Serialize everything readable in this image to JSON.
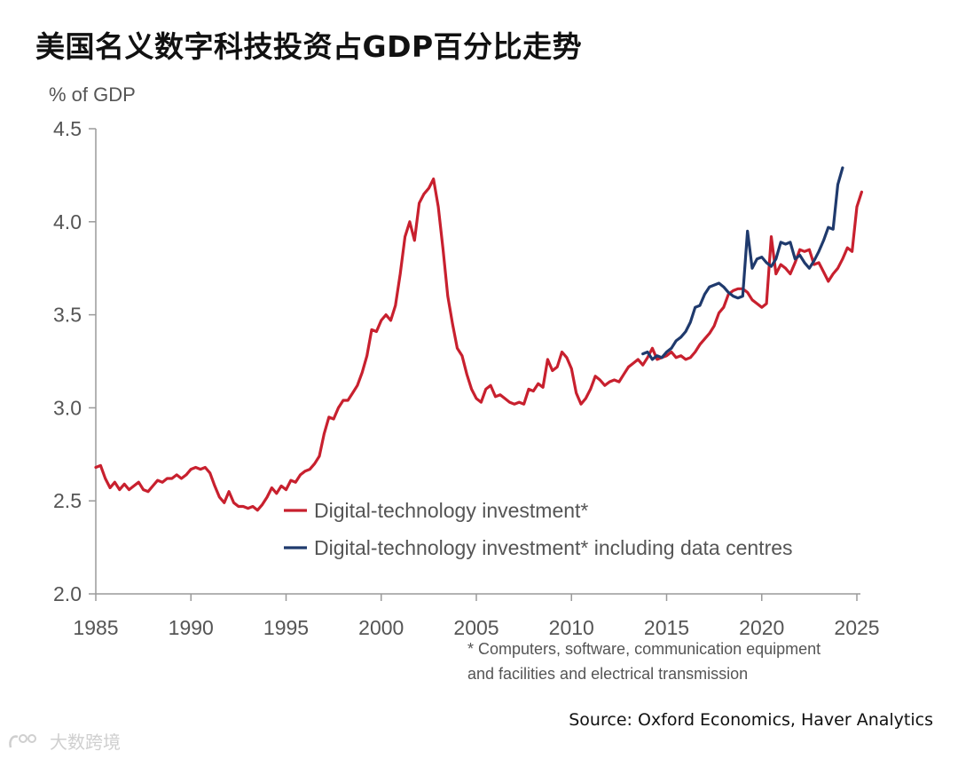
{
  "title": "美国名义数字科技投资占GDP百分比走势",
  "source": "Source: Oxford Economics, Haver Analytics",
  "watermark": "大数跨境",
  "colors": {
    "red": "#c8202e",
    "navy": "#1f3a6d",
    "axis": "#9a9a9a",
    "text": "#555555"
  },
  "chart_data": {
    "type": "line",
    "ylabel": "% of GDP",
    "ylim": [
      2.0,
      4.5
    ],
    "xlim": [
      1985,
      2025.5
    ],
    "yticks": [
      "2.0",
      "2.5",
      "3.0",
      "3.5",
      "4.0",
      "4.5"
    ],
    "xticks": [
      "1985",
      "1990",
      "1995",
      "2000",
      "2005",
      "2010",
      "2015",
      "2020",
      "2025"
    ],
    "footnote": [
      "* Computers, software, communication equipment",
      "and facilities  and electrical transmission"
    ],
    "series": [
      {
        "name": "Digital-technology investment*",
        "color": "#c8202e",
        "points": [
          [
            1985.0,
            2.68
          ],
          [
            1985.25,
            2.69
          ],
          [
            1985.5,
            2.62
          ],
          [
            1985.75,
            2.57
          ],
          [
            1986.0,
            2.6
          ],
          [
            1986.25,
            2.56
          ],
          [
            1986.5,
            2.59
          ],
          [
            1986.75,
            2.56
          ],
          [
            1987.0,
            2.58
          ],
          [
            1987.25,
            2.6
          ],
          [
            1987.5,
            2.56
          ],
          [
            1987.75,
            2.55
          ],
          [
            1988.0,
            2.58
          ],
          [
            1988.25,
            2.61
          ],
          [
            1988.5,
            2.6
          ],
          [
            1988.75,
            2.62
          ],
          [
            1989.0,
            2.62
          ],
          [
            1989.25,
            2.64
          ],
          [
            1989.5,
            2.62
          ],
          [
            1989.75,
            2.64
          ],
          [
            1990.0,
            2.67
          ],
          [
            1990.25,
            2.68
          ],
          [
            1990.5,
            2.67
          ],
          [
            1990.75,
            2.68
          ],
          [
            1991.0,
            2.65
          ],
          [
            1991.25,
            2.58
          ],
          [
            1991.5,
            2.52
          ],
          [
            1991.75,
            2.49
          ],
          [
            1992.0,
            2.55
          ],
          [
            1992.25,
            2.49
          ],
          [
            1992.5,
            2.47
          ],
          [
            1992.75,
            2.47
          ],
          [
            1993.0,
            2.46
          ],
          [
            1993.25,
            2.47
          ],
          [
            1993.5,
            2.45
          ],
          [
            1993.75,
            2.48
          ],
          [
            1994.0,
            2.52
          ],
          [
            1994.25,
            2.57
          ],
          [
            1994.5,
            2.54
          ],
          [
            1994.75,
            2.58
          ],
          [
            1995.0,
            2.56
          ],
          [
            1995.25,
            2.61
          ],
          [
            1995.5,
            2.6
          ],
          [
            1995.75,
            2.64
          ],
          [
            1996.0,
            2.66
          ],
          [
            1996.25,
            2.67
          ],
          [
            1996.5,
            2.7
          ],
          [
            1996.75,
            2.74
          ],
          [
            1997.0,
            2.86
          ],
          [
            1997.25,
            2.95
          ],
          [
            1997.5,
            2.94
          ],
          [
            1997.75,
            3.0
          ],
          [
            1998.0,
            3.04
          ],
          [
            1998.25,
            3.04
          ],
          [
            1998.5,
            3.08
          ],
          [
            1998.75,
            3.12
          ],
          [
            1999.0,
            3.19
          ],
          [
            1999.25,
            3.28
          ],
          [
            1999.5,
            3.42
          ],
          [
            1999.75,
            3.41
          ],
          [
            2000.0,
            3.47
          ],
          [
            2000.25,
            3.5
          ],
          [
            2000.5,
            3.47
          ],
          [
            2000.75,
            3.55
          ],
          [
            2001.0,
            3.72
          ],
          [
            2001.25,
            3.92
          ],
          [
            2001.5,
            4.0
          ],
          [
            2001.75,
            3.9
          ],
          [
            2002.0,
            4.1
          ],
          [
            2002.25,
            4.15
          ],
          [
            2002.5,
            4.18
          ],
          [
            2002.75,
            4.23
          ],
          [
            2003.0,
            4.08
          ],
          [
            2003.25,
            3.85
          ],
          [
            2003.5,
            3.6
          ],
          [
            2003.75,
            3.45
          ],
          [
            2004.0,
            3.32
          ],
          [
            2004.25,
            3.28
          ],
          [
            2004.5,
            3.18
          ],
          [
            2004.75,
            3.1
          ],
          [
            2005.0,
            3.05
          ],
          [
            2005.25,
            3.03
          ],
          [
            2005.5,
            3.1
          ],
          [
            2005.75,
            3.12
          ],
          [
            2006.0,
            3.06
          ],
          [
            2006.25,
            3.07
          ],
          [
            2006.5,
            3.05
          ],
          [
            2006.75,
            3.03
          ],
          [
            2007.0,
            3.02
          ],
          [
            2007.25,
            3.03
          ],
          [
            2007.5,
            3.02
          ],
          [
            2007.75,
            3.1
          ],
          [
            2008.0,
            3.09
          ],
          [
            2008.25,
            3.13
          ],
          [
            2008.5,
            3.11
          ],
          [
            2008.75,
            3.26
          ],
          [
            2009.0,
            3.2
          ],
          [
            2009.25,
            3.22
          ],
          [
            2009.5,
            3.3
          ],
          [
            2009.75,
            3.27
          ],
          [
            2010.0,
            3.21
          ],
          [
            2010.25,
            3.08
          ],
          [
            2010.5,
            3.02
          ],
          [
            2010.75,
            3.05
          ],
          [
            2011.0,
            3.1
          ],
          [
            2011.25,
            3.17
          ],
          [
            2011.5,
            3.15
          ],
          [
            2011.75,
            3.12
          ],
          [
            2012.0,
            3.14
          ],
          [
            2012.25,
            3.15
          ],
          [
            2012.5,
            3.14
          ],
          [
            2012.75,
            3.18
          ],
          [
            2013.0,
            3.22
          ],
          [
            2013.25,
            3.24
          ],
          [
            2013.5,
            3.26
          ],
          [
            2013.75,
            3.23
          ],
          [
            2014.0,
            3.27
          ],
          [
            2014.25,
            3.32
          ],
          [
            2014.5,
            3.26
          ],
          [
            2014.75,
            3.27
          ],
          [
            2015.0,
            3.28
          ],
          [
            2015.25,
            3.3
          ],
          [
            2015.5,
            3.27
          ],
          [
            2015.75,
            3.28
          ],
          [
            2016.0,
            3.26
          ],
          [
            2016.25,
            3.27
          ],
          [
            2016.5,
            3.3
          ],
          [
            2016.75,
            3.34
          ],
          [
            2017.0,
            3.37
          ],
          [
            2017.25,
            3.4
          ],
          [
            2017.5,
            3.44
          ],
          [
            2017.75,
            3.51
          ],
          [
            2018.0,
            3.54
          ],
          [
            2018.25,
            3.61
          ],
          [
            2018.5,
            3.63
          ],
          [
            2018.75,
            3.64
          ],
          [
            2019.0,
            3.64
          ],
          [
            2019.25,
            3.62
          ],
          [
            2019.5,
            3.58
          ],
          [
            2019.75,
            3.56
          ],
          [
            2020.0,
            3.54
          ],
          [
            2020.25,
            3.56
          ],
          [
            2020.5,
            3.92
          ],
          [
            2020.75,
            3.72
          ],
          [
            2021.0,
            3.77
          ],
          [
            2021.25,
            3.75
          ],
          [
            2021.5,
            3.72
          ],
          [
            2021.75,
            3.78
          ],
          [
            2022.0,
            3.85
          ],
          [
            2022.25,
            3.84
          ],
          [
            2022.5,
            3.85
          ],
          [
            2022.75,
            3.77
          ],
          [
            2023.0,
            3.78
          ],
          [
            2023.25,
            3.73
          ],
          [
            2023.5,
            3.68
          ],
          [
            2023.75,
            3.72
          ],
          [
            2024.0,
            3.75
          ],
          [
            2024.25,
            3.8
          ],
          [
            2024.5,
            3.86
          ],
          [
            2024.75,
            3.84
          ],
          [
            2025.0,
            4.08
          ],
          [
            2025.25,
            4.16
          ]
        ]
      },
      {
        "name": "Digital-technology investment* including data centres",
        "color": "#1f3a6d",
        "points": [
          [
            2013.75,
            3.29
          ],
          [
            2014.0,
            3.3
          ],
          [
            2014.25,
            3.26
          ],
          [
            2014.5,
            3.28
          ],
          [
            2014.75,
            3.27
          ],
          [
            2015.0,
            3.3
          ],
          [
            2015.25,
            3.32
          ],
          [
            2015.5,
            3.36
          ],
          [
            2015.75,
            3.38
          ],
          [
            2016.0,
            3.41
          ],
          [
            2016.25,
            3.46
          ],
          [
            2016.5,
            3.54
          ],
          [
            2016.75,
            3.55
          ],
          [
            2017.0,
            3.61
          ],
          [
            2017.25,
            3.65
          ],
          [
            2017.5,
            3.66
          ],
          [
            2017.75,
            3.67
          ],
          [
            2018.0,
            3.65
          ],
          [
            2018.25,
            3.62
          ],
          [
            2018.5,
            3.6
          ],
          [
            2018.75,
            3.59
          ],
          [
            2019.0,
            3.6
          ],
          [
            2019.25,
            3.95
          ],
          [
            2019.5,
            3.75
          ],
          [
            2019.75,
            3.8
          ],
          [
            2020.0,
            3.81
          ],
          [
            2020.25,
            3.78
          ],
          [
            2020.5,
            3.76
          ],
          [
            2020.75,
            3.8
          ],
          [
            2021.0,
            3.89
          ],
          [
            2021.25,
            3.88
          ],
          [
            2021.5,
            3.89
          ],
          [
            2021.75,
            3.8
          ],
          [
            2022.0,
            3.82
          ],
          [
            2022.25,
            3.78
          ],
          [
            2022.5,
            3.75
          ],
          [
            2022.75,
            3.79
          ],
          [
            2023.0,
            3.84
          ],
          [
            2023.25,
            3.9
          ],
          [
            2023.5,
            3.97
          ],
          [
            2023.75,
            3.96
          ],
          [
            2024.0,
            4.2
          ],
          [
            2024.25,
            4.29
          ]
        ]
      }
    ]
  }
}
